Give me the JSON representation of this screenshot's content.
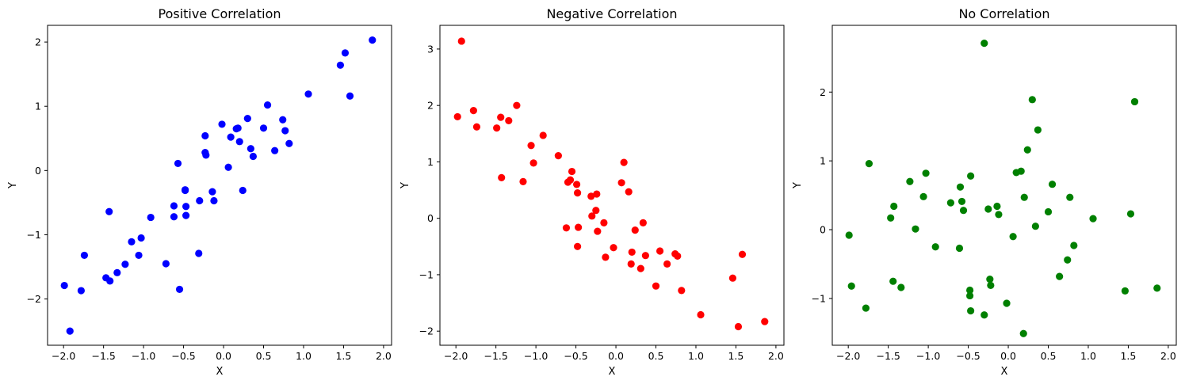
{
  "chart_data": [
    {
      "type": "scatter",
      "title": "Positive Correlation",
      "xlabel": "X",
      "ylabel": "Y",
      "color": "#0000ff",
      "xlim": [
        -2.2,
        2.1
      ],
      "ylim": [
        -2.72,
        2.26
      ],
      "xticks": [
        -2.0,
        -1.5,
        -1.0,
        -0.5,
        0.0,
        0.5,
        1.0,
        1.5,
        2.0
      ],
      "xtick_labels": [
        "−2.0",
        "−1.5",
        "−1.0",
        "−0.5",
        "0.0",
        "0.5",
        "1.0",
        "1.5",
        "2.0"
      ],
      "yticks": [
        -2,
        -1,
        0,
        1,
        2
      ],
      "ytick_labels": [
        "−2",
        "−1",
        "0",
        "1",
        "2"
      ],
      "x": [
        -1.99,
        -1.92,
        -1.78,
        -1.74,
        -1.47,
        -1.43,
        -1.42,
        -1.33,
        -1.23,
        -1.15,
        -1.06,
        -1.03,
        -0.91,
        -0.72,
        -0.62,
        -0.62,
        -0.57,
        -0.55,
        -0.48,
        -0.48,
        -0.47,
        -0.47,
        -0.31,
        -0.3,
        -0.23,
        -0.23,
        -0.22,
        -0.14,
        -0.12,
        -0.02,
        0.06,
        0.09,
        0.16,
        0.18,
        0.2,
        0.24,
        0.3,
        0.34,
        0.37,
        0.5,
        0.55,
        0.64,
        0.74,
        0.77,
        0.82,
        1.06,
        1.46,
        1.52,
        1.58,
        1.86
      ],
      "y": [
        -1.79,
        -2.5,
        -1.87,
        -1.32,
        -1.67,
        -0.64,
        -1.72,
        -1.59,
        -1.46,
        -1.11,
        -1.32,
        -1.05,
        -0.73,
        -1.45,
        -0.55,
        -0.72,
        0.11,
        -1.85,
        -0.3,
        -0.31,
        -0.7,
        -0.56,
        -1.29,
        -0.47,
        0.54,
        0.28,
        0.24,
        -0.33,
        -0.47,
        0.72,
        0.05,
        0.52,
        0.65,
        0.66,
        0.45,
        -0.31,
        0.81,
        0.34,
        0.22,
        0.66,
        1.02,
        0.31,
        0.79,
        0.62,
        0.42,
        1.19,
        1.64,
        1.83,
        1.16,
        2.03
      ]
    },
    {
      "type": "scatter",
      "title": "Negative Correlation",
      "xlabel": "X",
      "ylabel": "Y",
      "color": "#ff0000",
      "xlim": [
        -2.2,
        2.1
      ],
      "ylim": [
        -2.25,
        3.42
      ],
      "xticks": [
        -2.0,
        -1.5,
        -1.0,
        -0.5,
        0.0,
        0.5,
        1.0,
        1.5,
        2.0
      ],
      "xtick_labels": [
        "−2.0",
        "−1.5",
        "−1.0",
        "−0.5",
        "0.0",
        "0.5",
        "1.0",
        "1.5",
        "2.0"
      ],
      "yticks": [
        -2,
        -1,
        0,
        1,
        2,
        3
      ],
      "ytick_labels": [
        "−2",
        "−1",
        "0",
        "1",
        "2",
        "3"
      ],
      "x": [
        -1.98,
        -1.93,
        -1.78,
        -1.74,
        -1.49,
        -1.44,
        -1.43,
        -1.34,
        -1.24,
        -1.16,
        -1.06,
        -1.03,
        -0.91,
        -0.72,
        -0.62,
        -0.6,
        -0.57,
        -0.55,
        -0.49,
        -0.48,
        -0.48,
        -0.47,
        -0.31,
        -0.3,
        -0.25,
        -0.24,
        -0.23,
        -0.15,
        -0.13,
        -0.03,
        0.07,
        0.1,
        0.16,
        0.19,
        0.2,
        0.24,
        0.31,
        0.34,
        0.37,
        0.5,
        0.55,
        0.64,
        0.74,
        0.77,
        0.82,
        1.06,
        1.46,
        1.53,
        1.58,
        1.86
      ],
      "y": [
        1.8,
        3.14,
        1.91,
        1.62,
        1.6,
        1.79,
        0.72,
        1.73,
        2.0,
        0.65,
        1.29,
        0.98,
        1.47,
        1.11,
        -0.17,
        0.64,
        0.68,
        0.83,
        0.6,
        0.45,
        -0.5,
        -0.16,
        0.39,
        0.04,
        0.14,
        0.43,
        -0.23,
        -0.08,
        -0.69,
        -0.52,
        0.63,
        0.99,
        0.47,
        -0.81,
        -0.6,
        -0.21,
        -0.89,
        -0.08,
        -0.66,
        -1.2,
        -0.58,
        -0.81,
        -0.63,
        -0.67,
        -1.28,
        -1.71,
        -1.06,
        -1.92,
        -0.64,
        -1.83
      ]
    },
    {
      "type": "scatter",
      "title": "No Correlation",
      "xlabel": "X",
      "ylabel": "Y",
      "color": "#008000",
      "xlim": [
        -2.2,
        2.1
      ],
      "ylim": [
        -1.68,
        2.97
      ],
      "xticks": [
        -2.0,
        -1.5,
        -1.0,
        -0.5,
        0.0,
        0.5,
        1.0,
        1.5,
        2.0
      ],
      "xtick_labels": [
        "−2.0",
        "−1.5",
        "−1.0",
        "−0.5",
        "0.0",
        "0.5",
        "1.0",
        "1.5",
        "2.0"
      ],
      "yticks": [
        -1,
        0,
        1,
        2
      ],
      "ytick_labels": [
        "−1",
        "0",
        "1",
        "2"
      ],
      "x": [
        -1.99,
        -1.96,
        -1.78,
        -1.74,
        -1.47,
        -1.44,
        -1.43,
        -1.34,
        -1.23,
        -1.16,
        -1.06,
        -1.03,
        -0.91,
        -0.72,
        -0.61,
        -0.6,
        -0.58,
        -0.56,
        -0.48,
        -0.48,
        -0.47,
        -0.47,
        -0.3,
        -0.3,
        -0.25,
        -0.23,
        -0.22,
        -0.14,
        -0.12,
        -0.02,
        0.06,
        0.1,
        0.16,
        0.19,
        0.2,
        0.24,
        0.3,
        0.34,
        0.37,
        0.5,
        0.55,
        0.64,
        0.74,
        0.77,
        0.82,
        1.06,
        1.46,
        1.53,
        1.58,
        1.86
      ],
      "y": [
        -0.08,
        -0.82,
        -1.14,
        0.96,
        0.17,
        -0.75,
        0.34,
        -0.84,
        0.7,
        0.01,
        0.48,
        0.82,
        -0.25,
        0.39,
        -0.27,
        0.62,
        0.41,
        0.28,
        -0.88,
        -0.96,
        -1.18,
        0.78,
        -1.24,
        2.71,
        0.3,
        -0.72,
        -0.81,
        0.34,
        0.22,
        -1.07,
        -0.1,
        0.83,
        0.85,
        -1.51,
        0.47,
        1.16,
        1.89,
        0.05,
        1.45,
        0.26,
        0.66,
        -0.68,
        -0.44,
        0.47,
        -0.23,
        0.16,
        -0.89,
        0.23,
        1.86,
        -0.85
      ]
    }
  ]
}
